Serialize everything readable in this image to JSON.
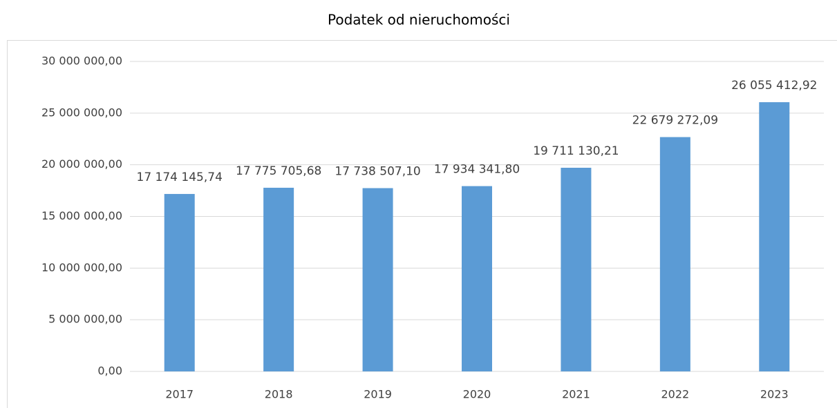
{
  "chart_data": {
    "type": "bar",
    "title": "Podatek od nieruchomości",
    "categories": [
      "2017",
      "2018",
      "2019",
      "2020",
      "2021",
      "2022",
      "2023"
    ],
    "values": [
      17174145.74,
      17775705.68,
      17738507.1,
      17934341.8,
      19711130.21,
      22679272.09,
      26055412.92
    ],
    "value_labels": [
      "17 174 145,74",
      "17 775 705,68",
      "17 738 507,10",
      "17 934 341,80",
      "19 711 130,21",
      "22 679 272,09",
      "26 055 412,92"
    ],
    "color": "#5b9bd5",
    "ylim": [
      0,
      30000000
    ],
    "yticks": [
      {
        "value": 0,
        "label": "0,00"
      },
      {
        "value": 5000000,
        "label": "5 000 000,00"
      },
      {
        "value": 10000000,
        "label": "10 000 000,00"
      },
      {
        "value": 15000000,
        "label": "15 000 000,00"
      },
      {
        "value": 20000000,
        "label": "20 000 000,00"
      },
      {
        "value": 25000000,
        "label": "25 000 000,00"
      },
      {
        "value": 30000000,
        "label": "30 000 000,00"
      }
    ],
    "grid": true
  }
}
